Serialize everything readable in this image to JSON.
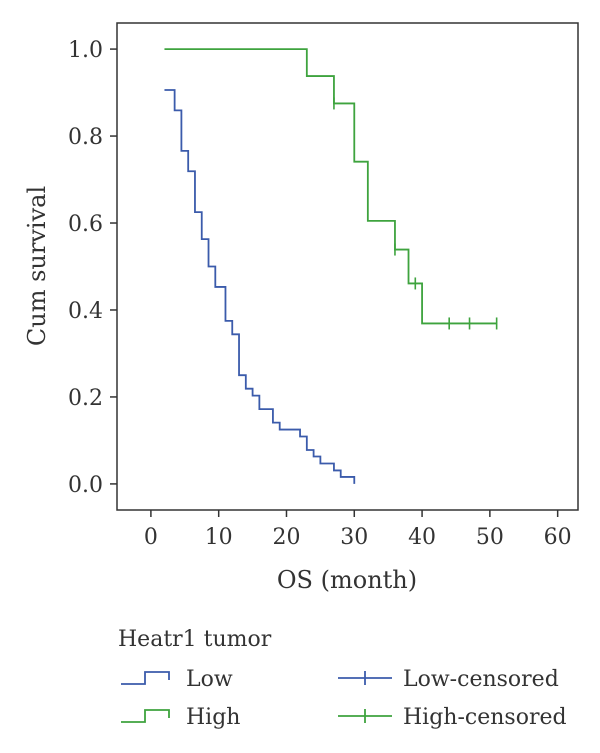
{
  "chart_data": {
    "type": "line",
    "subtype": "kaplan-meier step",
    "xlabel": "OS (month)",
    "ylabel": "Cum survival",
    "xlim": [
      -5,
      63
    ],
    "ylim": [
      -0.06,
      1.06
    ],
    "xticks": [
      0,
      10,
      20,
      30,
      40,
      50,
      60
    ],
    "yticks": [
      0.0,
      0.2,
      0.4,
      0.6,
      0.8,
      1.0
    ],
    "xtick_labels": [
      "0",
      "10",
      "20",
      "30",
      "40",
      "50",
      "60"
    ],
    "ytick_labels": [
      "0.0",
      "0.2",
      "0.4",
      "0.6",
      "0.8",
      "1.0"
    ],
    "grid": false,
    "legend": {
      "title": "Heatr1 tumor",
      "placement": "below",
      "entries": [
        "Low",
        "High",
        "Low-censored",
        "High-censored"
      ]
    },
    "series": [
      {
        "name": "Low",
        "color": "#3b5bab",
        "steps": [
          [
            2,
            0.906
          ],
          [
            3.5,
            0.859
          ],
          [
            4.5,
            0.766
          ],
          [
            5.5,
            0.719
          ],
          [
            6.5,
            0.625
          ],
          [
            7.5,
            0.563
          ],
          [
            8.5,
            0.5
          ],
          [
            9.5,
            0.453
          ],
          [
            11,
            0.375
          ],
          [
            12,
            0.344
          ],
          [
            13,
            0.25
          ],
          [
            14,
            0.219
          ],
          [
            15,
            0.203
          ],
          [
            16,
            0.172
          ],
          [
            18,
            0.141
          ],
          [
            19,
            0.125
          ],
          [
            22,
            0.109
          ],
          [
            23,
            0.078
          ],
          [
            24,
            0.063
          ],
          [
            25,
            0.047
          ],
          [
            27,
            0.031
          ],
          [
            28,
            0.016
          ],
          [
            30,
            0.0
          ]
        ],
        "censored_x": []
      },
      {
        "name": "High",
        "color": "#3ea33e",
        "steps": [
          [
            2,
            1.0
          ],
          [
            23,
            0.938
          ],
          [
            27,
            0.875
          ],
          [
            30,
            0.741
          ],
          [
            32,
            0.605
          ],
          [
            36,
            0.539
          ],
          [
            38,
            0.461
          ],
          [
            40,
            0.369
          ],
          [
            51,
            0.369
          ]
        ],
        "censored_x": [
          27,
          36,
          39,
          44,
          47,
          51
        ]
      }
    ]
  }
}
